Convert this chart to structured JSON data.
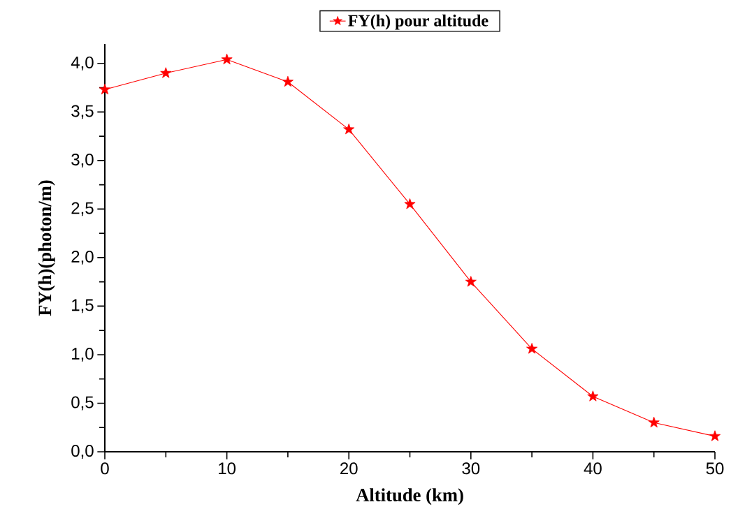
{
  "chart_data": {
    "type": "line",
    "xlabel": "Altitude (km)",
    "ylabel": "FY(h)(photon/m)",
    "x": [
      0,
      5,
      10,
      15,
      20,
      25,
      30,
      35,
      40,
      45,
      50
    ],
    "series": [
      {
        "name": "FY(h) pour altitude",
        "color": "#ff0000",
        "values": [
          3.73,
          3.9,
          4.04,
          3.81,
          3.32,
          2.55,
          1.75,
          1.06,
          0.57,
          0.3,
          0.16
        ]
      }
    ],
    "xlim": [
      0,
      50
    ],
    "ylim": [
      0,
      4.2
    ],
    "xticks": [
      0,
      10,
      20,
      30,
      40,
      50
    ],
    "yticks": [
      {
        "value": 0,
        "label": "0,0"
      },
      {
        "value": 0.5,
        "label": "0,5"
      },
      {
        "value": 1,
        "label": "1,0"
      },
      {
        "value": 1.5,
        "label": "1,5"
      },
      {
        "value": 2,
        "label": "2,0"
      },
      {
        "value": 2.5,
        "label": "2,5"
      },
      {
        "value": 3,
        "label": "3,0"
      },
      {
        "value": 3.5,
        "label": "3,5"
      },
      {
        "value": 4,
        "label": "4,0"
      }
    ],
    "grid": false,
    "legend": "top",
    "marker": "star",
    "line_style": "solid"
  }
}
